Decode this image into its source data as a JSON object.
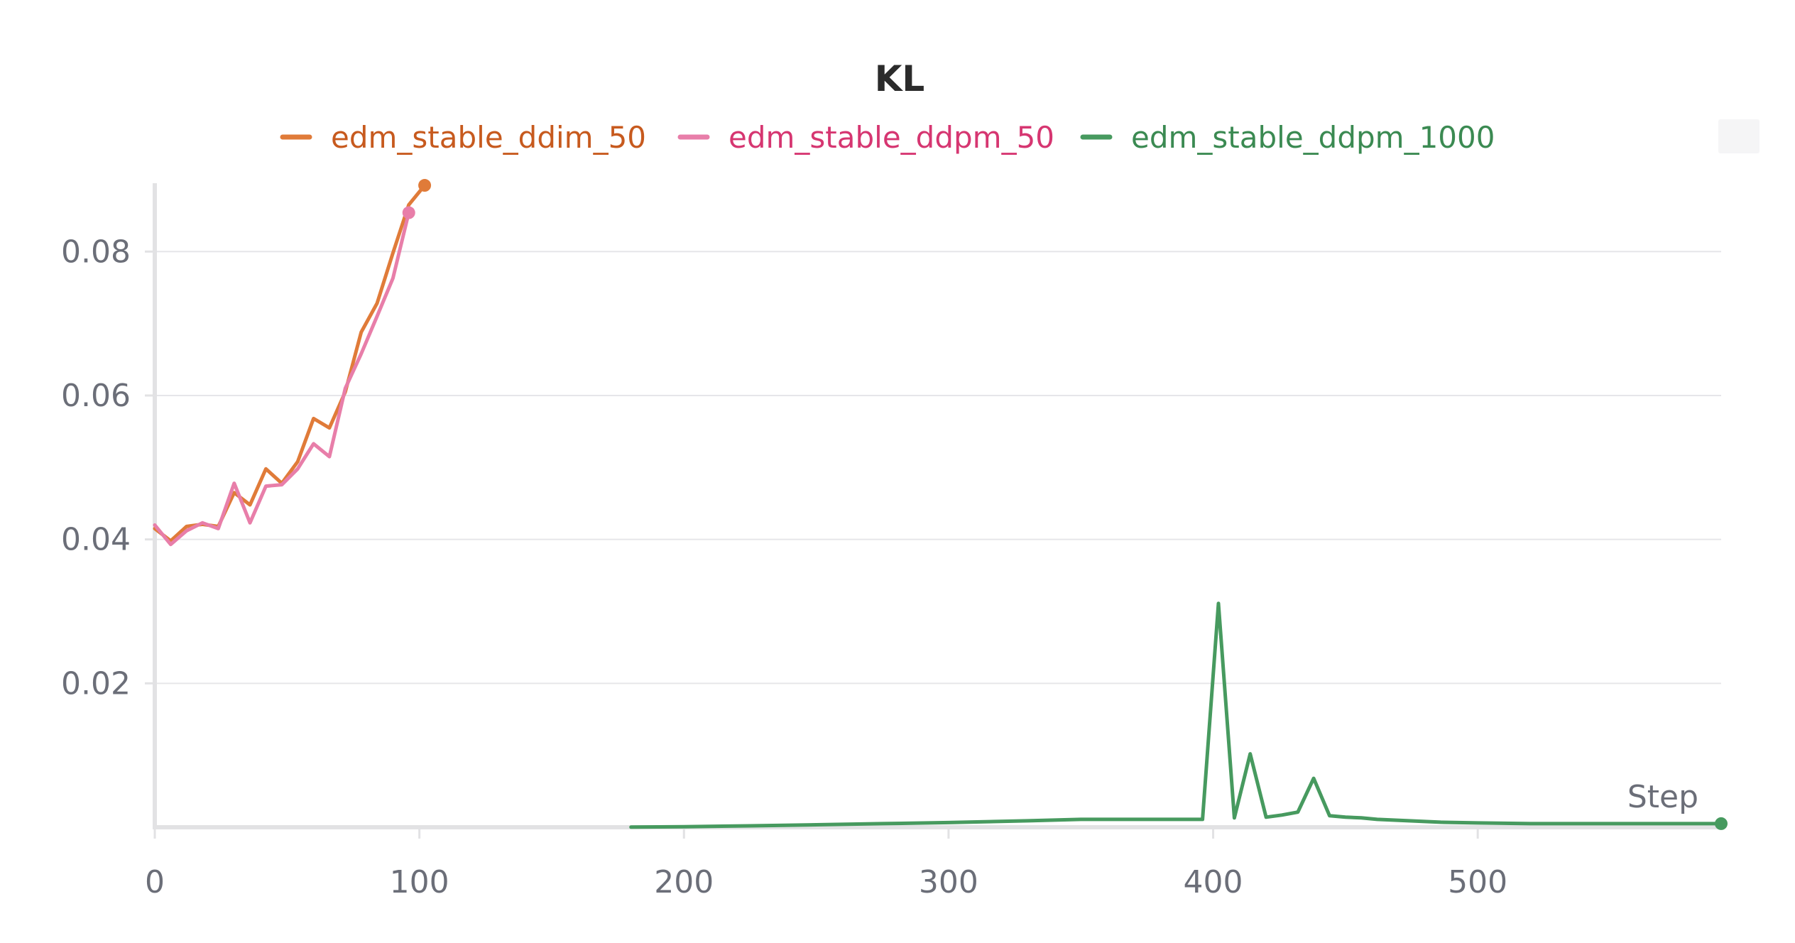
{
  "chart_data": {
    "type": "line",
    "title": "KL",
    "xlabel": "Step",
    "ylabel": "",
    "xlim": [
      0,
      592
    ],
    "ylim": [
      0.0,
      0.0895
    ],
    "x_ticks": [
      0,
      100,
      200,
      300,
      400,
      500
    ],
    "x_tick_labels": [
      "0",
      "100",
      "200",
      "300",
      "400",
      "500"
    ],
    "y_ticks": [
      0.02,
      0.04,
      0.06,
      0.08
    ],
    "y_tick_labels": [
      "0.02",
      "0.04",
      "0.06",
      "0.08"
    ],
    "grid": true,
    "legend_position": "top",
    "series": [
      {
        "name": "edm_stable_ddim_50",
        "color": "#e07b39",
        "text_color": "#c75a1e",
        "x": [
          0,
          6,
          12,
          18,
          24,
          30,
          36,
          42,
          48,
          54,
          60,
          66,
          72,
          78,
          84,
          90,
          96,
          102
        ],
        "y": [
          0.0415,
          0.0398,
          0.0418,
          0.0421,
          0.0418,
          0.0465,
          0.0448,
          0.0498,
          0.0478,
          0.0508,
          0.0568,
          0.0555,
          0.0605,
          0.0688,
          0.0728,
          0.0798,
          0.0865,
          0.0892
        ]
      },
      {
        "name": "edm_stable_ddpm_50",
        "color": "#e87ea9",
        "text_color": "#d63671",
        "x": [
          0,
          6,
          12,
          18,
          24,
          30,
          36,
          42,
          48,
          54,
          60,
          66,
          72,
          78,
          84,
          90,
          96
        ],
        "y": [
          0.042,
          0.0393,
          0.0412,
          0.0423,
          0.0415,
          0.0478,
          0.0423,
          0.0474,
          0.0476,
          0.0498,
          0.0533,
          0.0515,
          0.061,
          0.0658,
          0.071,
          0.0763,
          0.0854
        ]
      },
      {
        "name": "edm_stable_ddpm_1000",
        "color": "#479a5f",
        "text_color": "#3b8a52",
        "x": [
          180,
          200,
          225,
          250,
          275,
          300,
          330,
          350,
          375,
          390,
          396,
          402,
          408,
          414,
          420,
          426,
          432,
          438,
          444,
          450,
          456,
          462,
          474,
          486,
          500,
          520,
          540,
          560,
          575,
          592
        ],
        "y": [
          2e-05,
          8e-05,
          0.0002,
          0.00035,
          0.0005,
          0.00065,
          0.0009,
          0.0011,
          0.0011,
          0.0011,
          0.0011,
          0.0311,
          0.0013,
          0.0102,
          0.0014,
          0.0017,
          0.0021,
          0.0068,
          0.0016,
          0.0014,
          0.0013,
          0.0011,
          0.0009,
          0.0007,
          0.0006,
          0.0005,
          0.0005,
          0.0005,
          0.0005,
          0.0005
        ]
      }
    ]
  }
}
